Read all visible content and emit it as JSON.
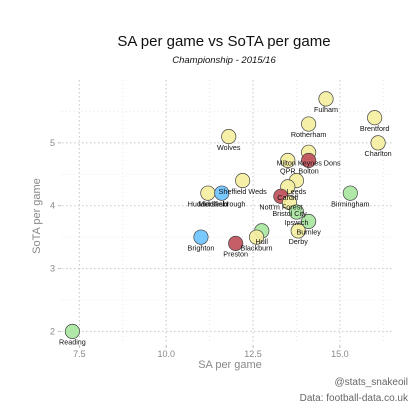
{
  "colors": {
    "yellow": "#f5eea0",
    "green": "#a8e6a0",
    "blue": "#6ec3ff",
    "red": "#c0505a",
    "axis_text": "#888888"
  },
  "credits": {
    "twitter": "@stats_snakeoil",
    "source": "Data: football-data.co.uk"
  },
  "chart_data": {
    "type": "scatter",
    "title": "SA per game vs SoTA per game",
    "subtitle": "Championship - 2015/16",
    "xlabel": "SA per game",
    "ylabel": "SoTA per game",
    "xlim": [
      7.0,
      16.5
    ],
    "ylim": [
      1.8,
      6.0
    ],
    "xticks": [
      7.5,
      10.0,
      12.5,
      15.0
    ],
    "xtick_labels": [
      "7.5",
      "10.0",
      "12.5",
      "15.0"
    ],
    "yticks": [
      2,
      3,
      4,
      5
    ],
    "ytick_labels": [
      "2",
      "3",
      "4",
      "5"
    ],
    "grid": true,
    "points": [
      {
        "label": "Fulham",
        "x": 14.6,
        "y": 5.7,
        "color": "yellow"
      },
      {
        "label": "Brentford",
        "x": 16.0,
        "y": 5.4,
        "color": "yellow"
      },
      {
        "label": "Rotherham",
        "x": 14.1,
        "y": 5.3,
        "color": "yellow"
      },
      {
        "label": "Charlton",
        "x": 16.1,
        "y": 5.0,
        "color": "yellow"
      },
      {
        "label": "Wolves",
        "x": 11.8,
        "y": 5.1,
        "color": "yellow"
      },
      {
        "label": "Milton Keynes Dons",
        "x": 14.1,
        "y": 4.85,
        "color": "yellow"
      },
      {
        "label": "Bolton",
        "x": 14.1,
        "y": 4.72,
        "color": "red"
      },
      {
        "label": "QPR",
        "x": 13.5,
        "y": 4.72,
        "color": "yellow"
      },
      {
        "label": "Leeds",
        "x": 13.75,
        "y": 4.4,
        "color": "yellow"
      },
      {
        "label": "Sheffield Weds",
        "x": 12.2,
        "y": 4.4,
        "color": "yellow"
      },
      {
        "label": "Cardiff",
        "x": 13.5,
        "y": 4.3,
        "color": "yellow"
      },
      {
        "label": "Nott'm Forest",
        "x": 13.3,
        "y": 4.15,
        "color": "red"
      },
      {
        "label": "Bristol City",
        "x": 13.55,
        "y": 4.05,
        "color": "yellow"
      },
      {
        "label": "Birmingham",
        "x": 15.3,
        "y": 4.2,
        "color": "green"
      },
      {
        "label": "Ipswich",
        "x": 13.75,
        "y": 3.9,
        "color": "green"
      },
      {
        "label": "Huddersfield",
        "x": 11.2,
        "y": 4.2,
        "color": "yellow"
      },
      {
        "label": "Middlesbrough",
        "x": 11.6,
        "y": 4.2,
        "color": "blue"
      },
      {
        "label": "Burnley",
        "x": 14.1,
        "y": 3.75,
        "color": "green"
      },
      {
        "label": "Derby",
        "x": 13.8,
        "y": 3.6,
        "color": "yellow"
      },
      {
        "label": "Hull",
        "x": 12.75,
        "y": 3.6,
        "color": "green"
      },
      {
        "label": "Blackburn",
        "x": 12.6,
        "y": 3.5,
        "color": "yellow"
      },
      {
        "label": "Brighton",
        "x": 11.0,
        "y": 3.5,
        "color": "blue"
      },
      {
        "label": "Preston",
        "x": 12.0,
        "y": 3.4,
        "color": "red"
      },
      {
        "label": "Reading",
        "x": 7.3,
        "y": 2.0,
        "color": "green"
      }
    ]
  }
}
